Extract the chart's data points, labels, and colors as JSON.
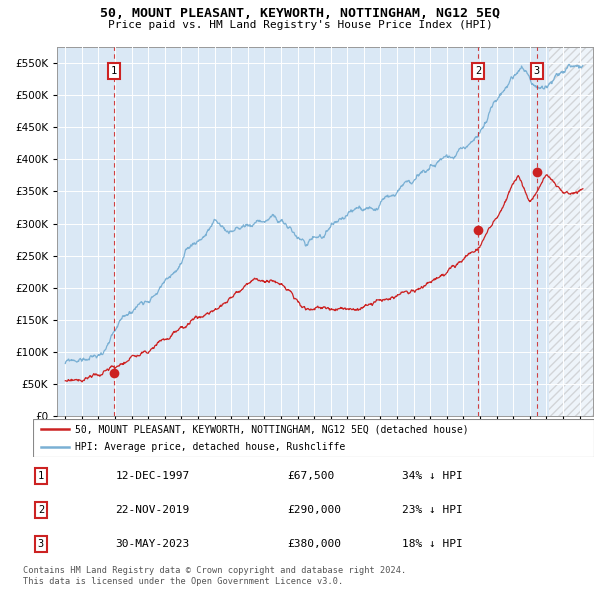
{
  "title": "50, MOUNT PLEASANT, KEYWORTH, NOTTINGHAM, NG12 5EQ",
  "subtitle": "Price paid vs. HM Land Registry's House Price Index (HPI)",
  "ylim": [
    0,
    575000
  ],
  "yticks": [
    0,
    50000,
    100000,
    150000,
    200000,
    250000,
    300000,
    350000,
    400000,
    450000,
    500000,
    550000
  ],
  "xlim_start": 1994.5,
  "xlim_end": 2026.8,
  "bg_color": "#dae8f5",
  "hpi_color": "#7ab0d4",
  "price_color": "#cc2222",
  "legend_label_red": "50, MOUNT PLEASANT, KEYWORTH, NOTTINGHAM, NG12 5EQ (detached house)",
  "legend_label_blue": "HPI: Average price, detached house, Rushcliffe",
  "sales": [
    {
      "label": "1",
      "date_str": "12-DEC-1997",
      "year": 1997.95,
      "price": 67500,
      "pct": "34%",
      "dir": "↓"
    },
    {
      "label": "2",
      "date_str": "22-NOV-2019",
      "year": 2019.9,
      "price": 290000,
      "pct": "23%",
      "dir": "↓"
    },
    {
      "label": "3",
      "date_str": "30-MAY-2023",
      "year": 2023.42,
      "price": 380000,
      "pct": "18%",
      "dir": "↓"
    }
  ],
  "footer": "Contains HM Land Registry data © Crown copyright and database right 2024.\nThis data is licensed under the Open Government Licence v3.0.",
  "hatch_start": 2024.17
}
